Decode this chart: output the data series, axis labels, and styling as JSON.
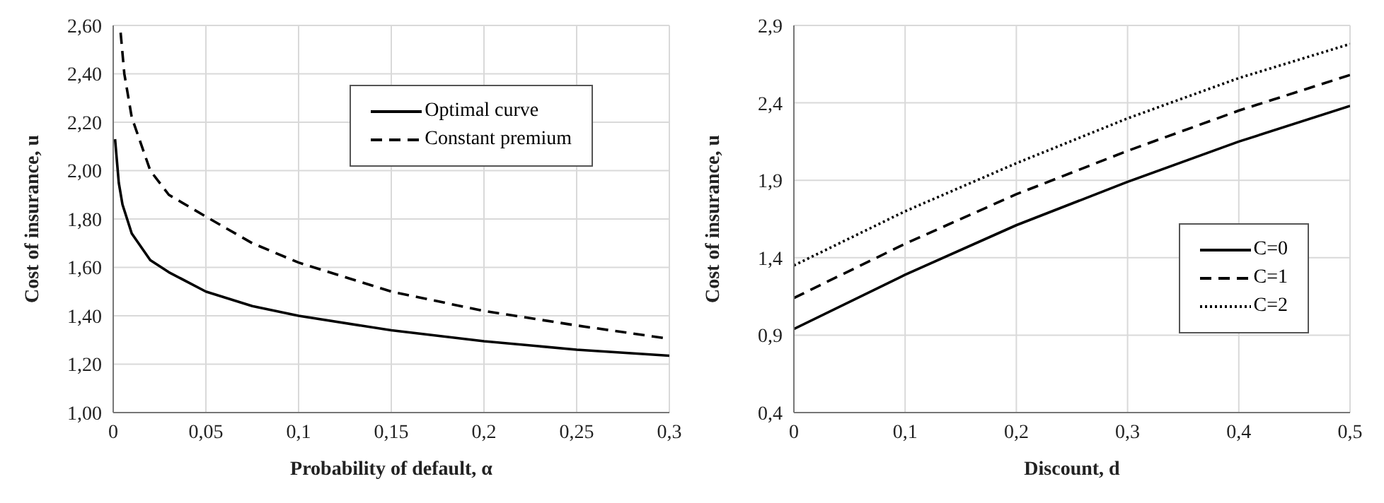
{
  "chart_data": [
    {
      "type": "line",
      "xlabel": "Probability of default, α",
      "ylabel": "Cost of insurance, u",
      "xlim": [
        0,
        0.3
      ],
      "ylim": [
        1.0,
        2.6
      ],
      "xticks": [
        0,
        {
          "value": 0.05,
          "label": "0,05"
        },
        {
          "value": 0.1,
          "label": "0,1"
        },
        {
          "value": 0.15,
          "label": "0,15"
        },
        {
          "value": 0.2,
          "label": "0,2"
        },
        {
          "value": 0.25,
          "label": "0,25"
        },
        {
          "value": 0.3,
          "label": "0,3"
        }
      ],
      "yticks": [
        {
          "value": 1.0,
          "label": "1,00"
        },
        {
          "value": 1.2,
          "label": "1,20"
        },
        {
          "value": 1.4,
          "label": "1,40"
        },
        {
          "value": 1.6,
          "label": "1,60"
        },
        {
          "value": 1.8,
          "label": "1,80"
        },
        {
          "value": 2.0,
          "label": "2,00"
        },
        {
          "value": 2.2,
          "label": "2,20"
        },
        {
          "value": 2.4,
          "label": "2,40"
        },
        {
          "value": 2.6,
          "label": "2,60"
        }
      ],
      "grid": true,
      "legend": "top right",
      "marker": "none",
      "series": [
        {
          "name": "Optimal curve",
          "color": "#000000",
          "line_style": "solid",
          "x": [
            0.001,
            0.003,
            0.005,
            0.01,
            0.02,
            0.03,
            0.05,
            0.075,
            0.1,
            0.15,
            0.2,
            0.25,
            0.3
          ],
          "values": [
            2.13,
            1.95,
            1.86,
            1.74,
            1.63,
            1.58,
            1.5,
            1.44,
            1.4,
            1.34,
            1.295,
            1.26,
            1.235
          ]
        },
        {
          "name": "Constant premium",
          "color": "#000000",
          "line_style": "dashed",
          "x": [
            0.004,
            0.006,
            0.01,
            0.02,
            0.03,
            0.05,
            0.075,
            0.1,
            0.15,
            0.2,
            0.25,
            0.3
          ],
          "values": [
            2.57,
            2.4,
            2.22,
            2.0,
            1.9,
            1.81,
            1.7,
            1.62,
            1.5,
            1.42,
            1.36,
            1.305
          ]
        }
      ]
    },
    {
      "type": "line",
      "xlabel": "Discount, d",
      "ylabel": "Cost of insurance, u",
      "xlim": [
        0,
        0.5
      ],
      "ylim": [
        0.4,
        2.9
      ],
      "xticks": [
        0,
        {
          "value": 0.1,
          "label": "0,1"
        },
        {
          "value": 0.2,
          "label": "0,2"
        },
        {
          "value": 0.3,
          "label": "0,3"
        },
        {
          "value": 0.4,
          "label": "0,4"
        },
        {
          "value": 0.5,
          "label": "0,5"
        }
      ],
      "yticks": [
        {
          "value": 0.4,
          "label": "0,4"
        },
        {
          "value": 0.9,
          "label": "0,9"
        },
        {
          "value": 1.4,
          "label": "1,4"
        },
        {
          "value": 1.9,
          "label": "1,9"
        },
        {
          "value": 2.4,
          "label": "2,4"
        },
        {
          "value": 2.9,
          "label": "2,9"
        }
      ],
      "grid": true,
      "legend": "right",
      "marker": "none",
      "series": [
        {
          "name": "C=0",
          "color": "#000000",
          "line_style": "solid",
          "x": [
            0,
            0.1,
            0.2,
            0.3,
            0.4,
            0.5
          ],
          "values": [
            0.94,
            1.29,
            1.61,
            1.89,
            2.15,
            2.38
          ]
        },
        {
          "name": "C=1",
          "color": "#000000",
          "line_style": "dashed",
          "x": [
            0,
            0.1,
            0.2,
            0.3,
            0.4,
            0.5
          ],
          "values": [
            1.14,
            1.49,
            1.81,
            2.09,
            2.35,
            2.58
          ]
        },
        {
          "name": "C=2",
          "color": "#000000",
          "line_style": "dotted",
          "x": [
            0,
            0.1,
            0.2,
            0.3,
            0.4,
            0.5
          ],
          "values": [
            1.35,
            1.7,
            2.01,
            2.3,
            2.56,
            2.78
          ]
        }
      ]
    }
  ]
}
